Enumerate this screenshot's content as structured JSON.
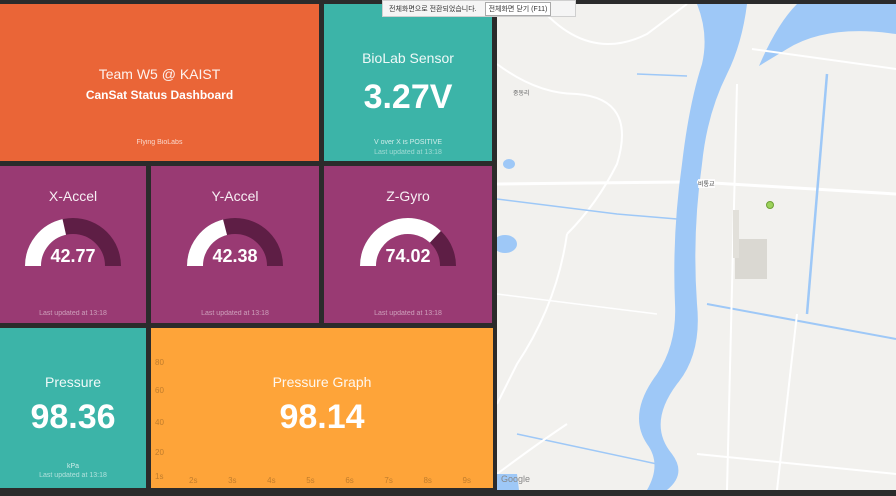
{
  "header_tile": {
    "title": "Team W5 @ KAIST",
    "subtitle": "CanSat Status Dashboard",
    "footer": "Flying BioLabs"
  },
  "biolab": {
    "title": "BioLab Sensor",
    "value": "3.27V",
    "note": "V over X is POSITIVE",
    "updated": "Last updated at 13:18"
  },
  "gauges": [
    {
      "title": "X-Accel",
      "value": "42.77",
      "fraction": 0.43,
      "updated": "Last updated at 13:18"
    },
    {
      "title": "Y-Accel",
      "value": "42.38",
      "fraction": 0.42,
      "updated": "Last updated at 13:18"
    },
    {
      "title": "Z-Gyro",
      "value": "74.02",
      "fraction": 0.74,
      "updated": "Last updated at 13:18"
    }
  ],
  "pressure": {
    "title": "Pressure",
    "value": "98.36",
    "unit": "kPa",
    "updated": "Last updated at 13:18"
  },
  "pressure_graph": {
    "title": "Pressure Graph",
    "value": "98.14",
    "y_ticks": [
      "80",
      "60",
      "40",
      "20",
      "1s"
    ],
    "x_ticks": [
      "2s",
      "3s",
      "4s",
      "5s",
      "6s",
      "7s",
      "8s",
      "9s"
    ]
  },
  "map": {
    "labels": {
      "village": "중동리",
      "bridge": "비통교"
    },
    "attribution": "Google"
  },
  "fullscreen_banner": {
    "message": "전체화면으로 전환되었습니다.",
    "exit_label": "전체화면 닫기 (F11)"
  },
  "colors": {
    "orange": "#ea6537",
    "teal": "#3cb4a8",
    "purple": "#993a73",
    "amber": "#fea439",
    "gauge_track": "#5e1e45",
    "gauge_fill": "#ffffff",
    "river": "#9ec8f7"
  }
}
